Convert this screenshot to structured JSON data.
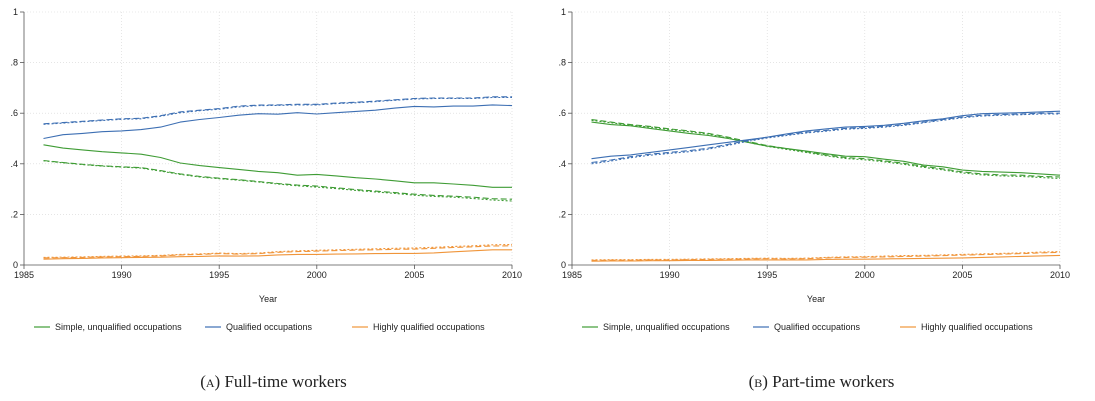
{
  "chart_data": [
    {
      "type": "line",
      "caption_label": "(a)",
      "caption_text": "Full-time workers",
      "xlabel": "Year",
      "ylabel": "",
      "xlim": [
        1985,
        2010
      ],
      "ylim": [
        0,
        1
      ],
      "x_ticks": [
        1985,
        1990,
        1995,
        2000,
        2005,
        2010
      ],
      "y_ticks": [
        0,
        0.2,
        0.4,
        0.6,
        0.8,
        1
      ],
      "y_tick_labels": [
        "0",
        ".2",
        ".4",
        ".6",
        ".8",
        "1"
      ],
      "grid": true,
      "legend_position": "bottom",
      "legend": [
        "Simple, unqualified occupations",
        "Qualified occupations",
        "Highly qualified occupations"
      ],
      "x": [
        1986,
        1987,
        1988,
        1989,
        1990,
        1991,
        1992,
        1993,
        1994,
        1995,
        1996,
        1997,
        1998,
        1999,
        2000,
        2001,
        2002,
        2003,
        2004,
        2005,
        2006,
        2007,
        2008,
        2009,
        2010
      ],
      "series": [
        {
          "group": 0,
          "color": "#3f9c35",
          "style": "solid",
          "values": [
            0.475,
            0.462,
            0.455,
            0.448,
            0.443,
            0.438,
            0.425,
            0.403,
            0.393,
            0.385,
            0.378,
            0.37,
            0.365,
            0.355,
            0.358,
            0.352,
            0.345,
            0.34,
            0.333,
            0.325,
            0.325,
            0.32,
            0.315,
            0.307,
            0.307
          ]
        },
        {
          "group": 0,
          "color": "#3f9c35",
          "style": "dashed",
          "values": [
            0.413,
            0.405,
            0.398,
            0.392,
            0.388,
            0.385,
            0.373,
            0.36,
            0.35,
            0.343,
            0.337,
            0.33,
            0.322,
            0.316,
            0.312,
            0.305,
            0.298,
            0.292,
            0.286,
            0.28,
            0.275,
            0.272,
            0.268,
            0.262,
            0.26
          ]
        },
        {
          "group": 0,
          "color": "#3f9c35",
          "style": "dotted",
          "values": [
            0.412,
            0.404,
            0.397,
            0.391,
            0.387,
            0.383,
            0.371,
            0.358,
            0.348,
            0.341,
            0.335,
            0.328,
            0.32,
            0.313,
            0.308,
            0.302,
            0.295,
            0.289,
            0.283,
            0.276,
            0.271,
            0.268,
            0.263,
            0.257,
            0.253
          ]
        },
        {
          "group": 1,
          "color": "#3d6fb3",
          "style": "solid",
          "values": [
            0.5,
            0.515,
            0.52,
            0.527,
            0.53,
            0.535,
            0.545,
            0.565,
            0.575,
            0.583,
            0.592,
            0.598,
            0.596,
            0.602,
            0.597,
            0.602,
            0.607,
            0.612,
            0.62,
            0.627,
            0.625,
            0.628,
            0.628,
            0.633,
            0.63
          ]
        },
        {
          "group": 1,
          "color": "#3d6fb3",
          "style": "dashed",
          "values": [
            0.558,
            0.563,
            0.568,
            0.573,
            0.578,
            0.58,
            0.59,
            0.605,
            0.612,
            0.618,
            0.628,
            0.632,
            0.633,
            0.635,
            0.635,
            0.64,
            0.643,
            0.648,
            0.653,
            0.658,
            0.66,
            0.66,
            0.66,
            0.665,
            0.665
          ]
        },
        {
          "group": 1,
          "color": "#3d6fb3",
          "style": "dotted",
          "values": [
            0.556,
            0.561,
            0.566,
            0.571,
            0.576,
            0.578,
            0.588,
            0.602,
            0.61,
            0.616,
            0.625,
            0.63,
            0.631,
            0.633,
            0.633,
            0.638,
            0.641,
            0.646,
            0.651,
            0.656,
            0.658,
            0.658,
            0.658,
            0.662,
            0.662
          ]
        },
        {
          "group": 2,
          "color": "#f0953a",
          "style": "solid",
          "values": [
            0.023,
            0.025,
            0.026,
            0.028,
            0.029,
            0.03,
            0.031,
            0.033,
            0.034,
            0.036,
            0.035,
            0.036,
            0.04,
            0.042,
            0.042,
            0.043,
            0.044,
            0.045,
            0.046,
            0.046,
            0.048,
            0.052,
            0.056,
            0.06,
            0.06
          ]
        },
        {
          "group": 2,
          "color": "#f0953a",
          "style": "dashed",
          "values": [
            0.028,
            0.029,
            0.03,
            0.032,
            0.033,
            0.034,
            0.036,
            0.04,
            0.042,
            0.045,
            0.043,
            0.045,
            0.05,
            0.053,
            0.055,
            0.057,
            0.059,
            0.06,
            0.062,
            0.063,
            0.066,
            0.069,
            0.072,
            0.075,
            0.076
          ]
        },
        {
          "group": 2,
          "color": "#f0953a",
          "style": "dotted",
          "values": [
            0.03,
            0.031,
            0.032,
            0.034,
            0.035,
            0.036,
            0.038,
            0.042,
            0.044,
            0.047,
            0.045,
            0.047,
            0.053,
            0.056,
            0.058,
            0.06,
            0.062,
            0.064,
            0.066,
            0.067,
            0.07,
            0.073,
            0.076,
            0.08,
            0.081
          ]
        }
      ]
    },
    {
      "type": "line",
      "caption_label": "(b)",
      "caption_text": "Part-time workers",
      "xlabel": "Year",
      "ylabel": "",
      "xlim": [
        1985,
        2010
      ],
      "ylim": [
        0,
        1
      ],
      "x_ticks": [
        1985,
        1990,
        1995,
        2000,
        2005,
        2010
      ],
      "y_ticks": [
        0,
        0.2,
        0.4,
        0.6,
        0.8,
        1
      ],
      "y_tick_labels": [
        "0",
        ".2",
        ".4",
        ".6",
        ".8",
        "1"
      ],
      "grid": true,
      "legend_position": "bottom",
      "legend": [
        "Simple, unqualified occupations",
        "Qualified occupations",
        "Highly qualified occupations"
      ],
      "x": [
        1986,
        1987,
        1988,
        1989,
        1990,
        1991,
        1992,
        1993,
        1994,
        1995,
        1996,
        1997,
        1998,
        1999,
        2000,
        2001,
        2002,
        2003,
        2004,
        2005,
        2006,
        2007,
        2008,
        2009,
        2010
      ],
      "series": [
        {
          "group": 0,
          "color": "#3f9c35",
          "style": "solid",
          "values": [
            0.565,
            0.555,
            0.55,
            0.54,
            0.53,
            0.52,
            0.512,
            0.5,
            0.485,
            0.47,
            0.46,
            0.45,
            0.44,
            0.43,
            0.428,
            0.418,
            0.41,
            0.395,
            0.388,
            0.375,
            0.37,
            0.367,
            0.365,
            0.36,
            0.355
          ]
        },
        {
          "group": 0,
          "color": "#3f9c35",
          "style": "dashed",
          "values": [
            0.575,
            0.565,
            0.555,
            0.548,
            0.538,
            0.53,
            0.52,
            0.505,
            0.488,
            0.472,
            0.46,
            0.448,
            0.435,
            0.425,
            0.42,
            0.412,
            0.402,
            0.39,
            0.38,
            0.368,
            0.36,
            0.356,
            0.355,
            0.35,
            0.348
          ]
        },
        {
          "group": 0,
          "color": "#3f9c35",
          "style": "dotted",
          "values": [
            0.572,
            0.562,
            0.552,
            0.545,
            0.535,
            0.527,
            0.517,
            0.502,
            0.485,
            0.469,
            0.457,
            0.445,
            0.432,
            0.421,
            0.416,
            0.408,
            0.398,
            0.386,
            0.376,
            0.364,
            0.356,
            0.352,
            0.35,
            0.346,
            0.342
          ]
        },
        {
          "group": 1,
          "color": "#3d6fb3",
          "style": "solid",
          "values": [
            0.42,
            0.43,
            0.435,
            0.445,
            0.455,
            0.465,
            0.475,
            0.485,
            0.495,
            0.505,
            0.518,
            0.53,
            0.538,
            0.545,
            0.548,
            0.552,
            0.56,
            0.57,
            0.578,
            0.59,
            0.598,
            0.6,
            0.602,
            0.605,
            0.608
          ]
        },
        {
          "group": 1,
          "color": "#3d6fb3",
          "style": "dashed",
          "values": [
            0.405,
            0.415,
            0.428,
            0.438,
            0.445,
            0.452,
            0.462,
            0.477,
            0.492,
            0.505,
            0.515,
            0.525,
            0.532,
            0.54,
            0.543,
            0.548,
            0.555,
            0.565,
            0.575,
            0.585,
            0.592,
            0.595,
            0.597,
            0.6,
            0.6
          ]
        },
        {
          "group": 1,
          "color": "#3d6fb3",
          "style": "dotted",
          "values": [
            0.4,
            0.411,
            0.424,
            0.434,
            0.441,
            0.448,
            0.458,
            0.473,
            0.489,
            0.502,
            0.512,
            0.522,
            0.529,
            0.537,
            0.54,
            0.545,
            0.552,
            0.562,
            0.572,
            0.582,
            0.589,
            0.592,
            0.594,
            0.597,
            0.597
          ]
        },
        {
          "group": 2,
          "color": "#f0953a",
          "style": "solid",
          "values": [
            0.015,
            0.016,
            0.016,
            0.017,
            0.017,
            0.018,
            0.018,
            0.019,
            0.02,
            0.02,
            0.02,
            0.02,
            0.022,
            0.023,
            0.023,
            0.024,
            0.025,
            0.026,
            0.027,
            0.028,
            0.03,
            0.032,
            0.034,
            0.036,
            0.038
          ]
        },
        {
          "group": 2,
          "color": "#f0953a",
          "style": "dashed",
          "values": [
            0.018,
            0.019,
            0.019,
            0.02,
            0.02,
            0.021,
            0.022,
            0.023,
            0.024,
            0.025,
            0.024,
            0.025,
            0.028,
            0.03,
            0.031,
            0.032,
            0.034,
            0.035,
            0.037,
            0.039,
            0.041,
            0.043,
            0.045,
            0.048,
            0.05
          ]
        },
        {
          "group": 2,
          "color": "#f0953a",
          "style": "dotted",
          "values": [
            0.02,
            0.021,
            0.021,
            0.022,
            0.022,
            0.023,
            0.024,
            0.025,
            0.026,
            0.027,
            0.026,
            0.027,
            0.03,
            0.032,
            0.033,
            0.035,
            0.037,
            0.038,
            0.04,
            0.042,
            0.044,
            0.046,
            0.048,
            0.051,
            0.053
          ]
        }
      ]
    }
  ]
}
